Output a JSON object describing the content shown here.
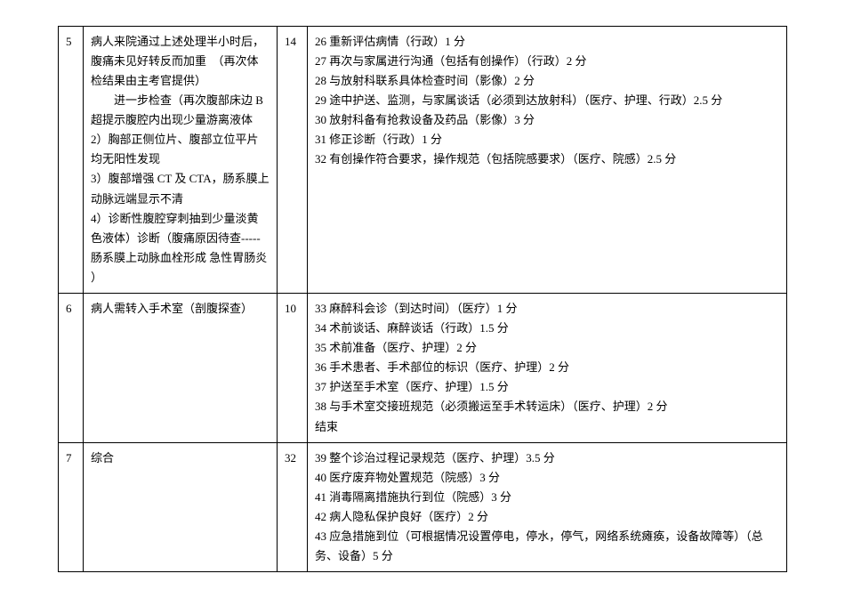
{
  "rows": [
    {
      "index": "5",
      "desc": [
        "病人来院通过上述处理半小时后，腹痛未见好转反而加重　（再次体检结果由主考官提供）",
        "　　进一步检查（再次腹部床边 B 超提示腹腔内出现少量游离液体",
        "2）胸部正侧位片、腹部立位平片均无阳性发现",
        "3）腹部增强 CT 及 CTA，肠系膜上动脉远端显示不清",
        "4）诊断性腹腔穿刺抽到少量淡黄色液体）诊断（腹痛原因待查-----肠系膜上动脉血栓形成 急性胃肠炎",
        "）"
      ],
      "score": "14",
      "details": [
        "26 重新评估病情（行政）1 分",
        "27 再次与家属进行沟通（包括有创操作）（行政）2 分",
        "28 与放射科联系具体检查时间（影像）2 分",
        "29 途中护送、监测，与家属谈话（必须到达放射科）（医疗、护理、行政）2.5 分",
        "30 放射科备有抢救设备及药品（影像）3 分",
        "31 修正诊断（行政）1 分",
        "32 有创操作符合要求，操作规范（包括院感要求）（医疗、院感）2.5 分"
      ]
    },
    {
      "index": "6",
      "desc": [
        "病人需转入手术室（剖腹探查）"
      ],
      "score": "10",
      "details": [
        "33 麻醉科会诊（到达时间）（医疗）1 分",
        "34 术前谈话、麻醉谈话（行政）1.5 分",
        "35 术前准备（医疗、护理）2 分",
        "36 手术患者、手术部位的标识（医疗、护理）2 分",
        "37 护送至手术室（医疗、护理）1.5 分",
        "38 与手术室交接班规范（必须搬运至手术转运床）（医疗、护理）2 分",
        "结束"
      ]
    },
    {
      "index": "7",
      "desc": [
        "综合"
      ],
      "score": "32",
      "details": [
        "39 整个诊治过程记录规范（医疗、护理）3.5 分",
        "40 医疗废弃物处置规范（院感）3 分",
        "41 消毒隔离措施执行到位（院感）3 分",
        "42 病人隐私保护良好（医疗）2 分",
        "43 应急措施到位（可根据情况设置停电，停水，停气，网络系统瘫痪，设备故障等）（总务、设备）5 分"
      ]
    }
  ]
}
